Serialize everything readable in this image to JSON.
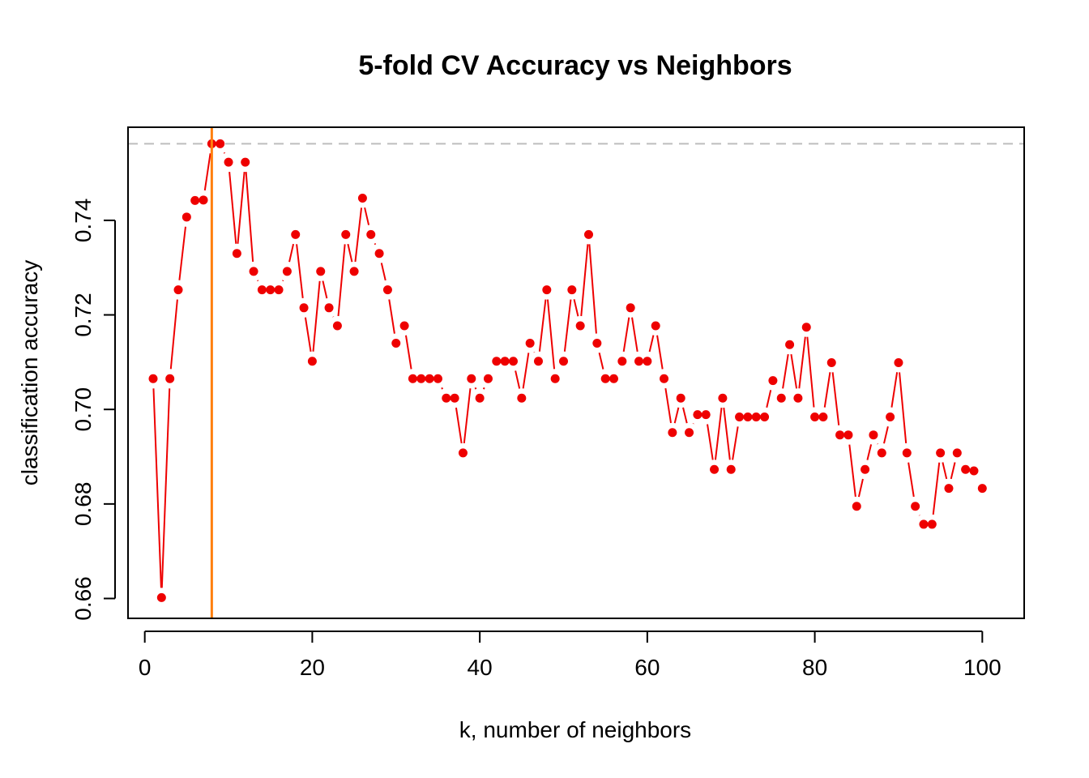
{
  "chart_data": {
    "type": "line",
    "title": "5-fold CV Accuracy vs Neighbors",
    "xlabel": "k, number of neighbors",
    "ylabel": "classification accuracy",
    "xlim": [
      -2,
      105
    ],
    "ylim": [
      0.6558,
      0.7597
    ],
    "x_ticks": [
      0,
      20,
      40,
      60,
      80,
      100
    ],
    "y_ticks": [
      0.66,
      0.68,
      0.7,
      0.72,
      0.74
    ],
    "y_tick_labels": [
      "0.66",
      "0.68",
      "0.70",
      "0.72",
      "0.74"
    ],
    "x_tick_labels": [
      "0",
      "20",
      "40",
      "60",
      "80",
      "100"
    ],
    "grid": false,
    "legend": "none",
    "series": [
      {
        "color": "#ee0000",
        "x": [
          1,
          2,
          3,
          4,
          5,
          6,
          7,
          8,
          9,
          10,
          11,
          12,
          13,
          14,
          15,
          16,
          17,
          18,
          19,
          20,
          21,
          22,
          23,
          24,
          25,
          26,
          27,
          28,
          29,
          30,
          31,
          32,
          33,
          34,
          35,
          36,
          37,
          38,
          39,
          40,
          41,
          42,
          43,
          44,
          45,
          46,
          47,
          48,
          49,
          50,
          51,
          52,
          53,
          54,
          55,
          56,
          57,
          58,
          59,
          60,
          61,
          62,
          63,
          64,
          65,
          66,
          67,
          68,
          69,
          70,
          71,
          72,
          73,
          74,
          75,
          76,
          77,
          78,
          79,
          80,
          81,
          82,
          83,
          84,
          85,
          86,
          87,
          88,
          89,
          90,
          91,
          92,
          93,
          94,
          95,
          96,
          97,
          98,
          99,
          100
        ],
        "y": [
          0.7065,
          0.6602,
          0.7065,
          0.7253,
          0.7407,
          0.7442,
          0.7443,
          0.7562,
          0.7562,
          0.7523,
          0.733,
          0.7523,
          0.7292,
          0.7253,
          0.7253,
          0.7253,
          0.7292,
          0.737,
          0.7215,
          0.7102,
          0.7292,
          0.7215,
          0.7177,
          0.737,
          0.7292,
          0.7447,
          0.737,
          0.733,
          0.7253,
          0.714,
          0.7177,
          0.7065,
          0.7065,
          0.7065,
          0.7065,
          0.7024,
          0.7024,
          0.6908,
          0.7065,
          0.7024,
          0.7065,
          0.7102,
          0.7102,
          0.7102,
          0.7024,
          0.714,
          0.7102,
          0.7253,
          0.7065,
          0.7102,
          0.7253,
          0.7177,
          0.737,
          0.714,
          0.7065,
          0.7065,
          0.7102,
          0.7215,
          0.7102,
          0.7102,
          0.7177,
          0.7065,
          0.6951,
          0.7024,
          0.6951,
          0.6989,
          0.6989,
          0.6873,
          0.7024,
          0.6873,
          0.6984,
          0.6984,
          0.6984,
          0.6984,
          0.7061,
          0.7024,
          0.7137,
          0.7024,
          0.7174,
          0.6984,
          0.6984,
          0.7099,
          0.6946,
          0.6946,
          0.6795,
          0.6873,
          0.6946,
          0.6908,
          0.6984,
          0.7099,
          0.6908,
          0.6795,
          0.6757,
          0.6757,
          0.6908,
          0.6833,
          0.6908,
          0.6873,
          0.687,
          0.6833
        ]
      }
    ],
    "reference_lines": {
      "vertical_x": 8,
      "vertical_color": "#ff7f0e",
      "horizontal_y": 0.7562,
      "horizontal_color": "#bebebe"
    }
  }
}
